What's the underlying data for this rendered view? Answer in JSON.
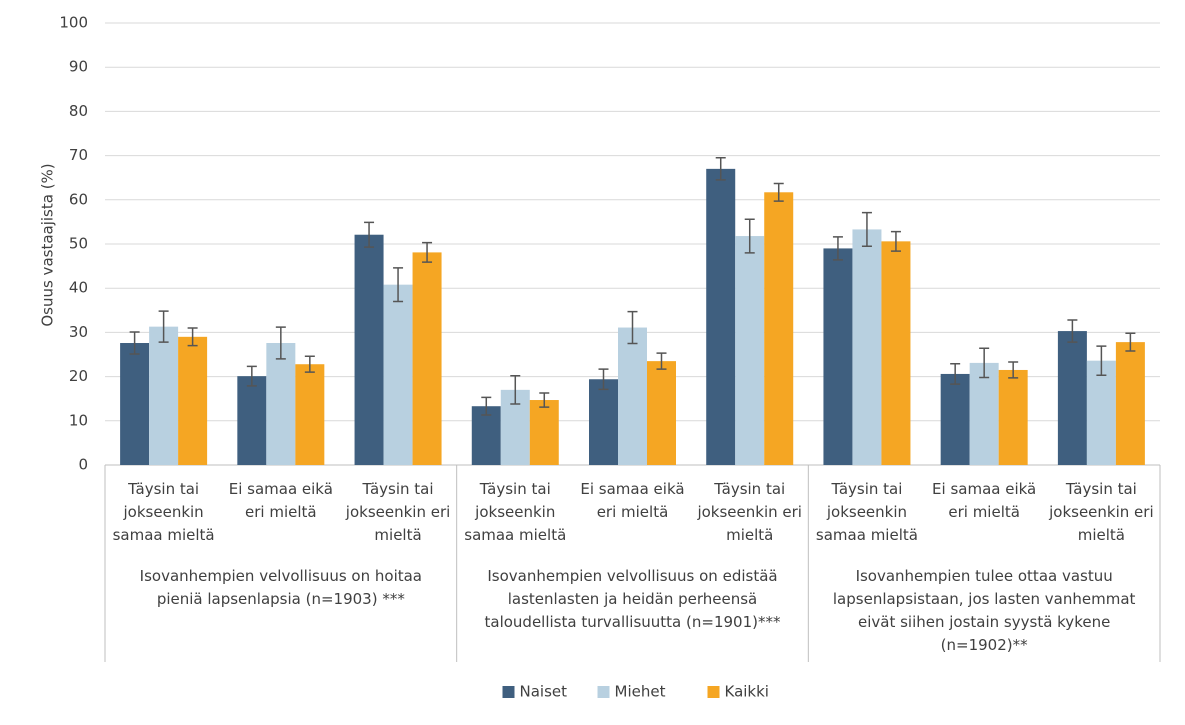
{
  "chart_data": {
    "type": "bar",
    "y_label": "Osuus vastaajista (%)",
    "categories": [
      "Täysin tai jokseenkin samaa mieltä",
      "Ei samaa eikä eri mieltä",
      "Täysin tai jokseenkin eri mieltä",
      "Täysin tai jokseenkin samaa mieltä",
      "Ei samaa eikä eri mieltä",
      "Täysin tai jokseenkin eri mieltä",
      "Täysin tai jokseenkin samaa mieltä",
      "Ei samaa eikä eri mieltä",
      "Täysin tai jokseenkin eri mieltä"
    ],
    "groups": [
      "Isovanhempien velvollisuus on hoitaa pieniä lapsenlapsia (n=1903) ***",
      "Isovanhempien velvollisuus on edistää lastenlasten ja heidän perheensä taloudellista turvallisuutta (n=1901)***",
      "Isovanhempien tulee ottaa vastuu lapsenlapsistaan, jos lasten vanhemmat eivät siihen jostain syystä kykene (n=1902)**"
    ],
    "series": [
      {
        "name": "Naiset",
        "color": "#3f5f7f",
        "values": [
          27.6,
          20.1,
          52.1,
          13.3,
          19.4,
          67.0,
          49.0,
          20.6,
          30.3
        ],
        "errors": [
          2.5,
          2.2,
          2.8,
          2.0,
          2.3,
          2.5,
          2.6,
          2.3,
          2.5
        ]
      },
      {
        "name": "Miehet",
        "color": "#b8d0e0",
        "values": [
          31.3,
          27.6,
          40.8,
          17.0,
          31.1,
          51.8,
          53.3,
          23.1,
          23.6
        ],
        "errors": [
          3.5,
          3.6,
          3.8,
          3.2,
          3.6,
          3.8,
          3.8,
          3.3,
          3.3
        ]
      },
      {
        "name": "Kaikki",
        "color": "#f5a623",
        "values": [
          29.0,
          22.8,
          48.1,
          14.7,
          23.5,
          61.7,
          50.6,
          21.5,
          27.8
        ],
        "errors": [
          2.0,
          1.8,
          2.2,
          1.6,
          1.8,
          2.0,
          2.2,
          1.8,
          2.0
        ]
      }
    ],
    "ylim": [
      0,
      100
    ],
    "yticks": [
      0,
      10,
      20,
      30,
      40,
      50,
      60,
      70,
      80,
      90,
      100
    ],
    "grid": true,
    "legend": "bottom"
  }
}
